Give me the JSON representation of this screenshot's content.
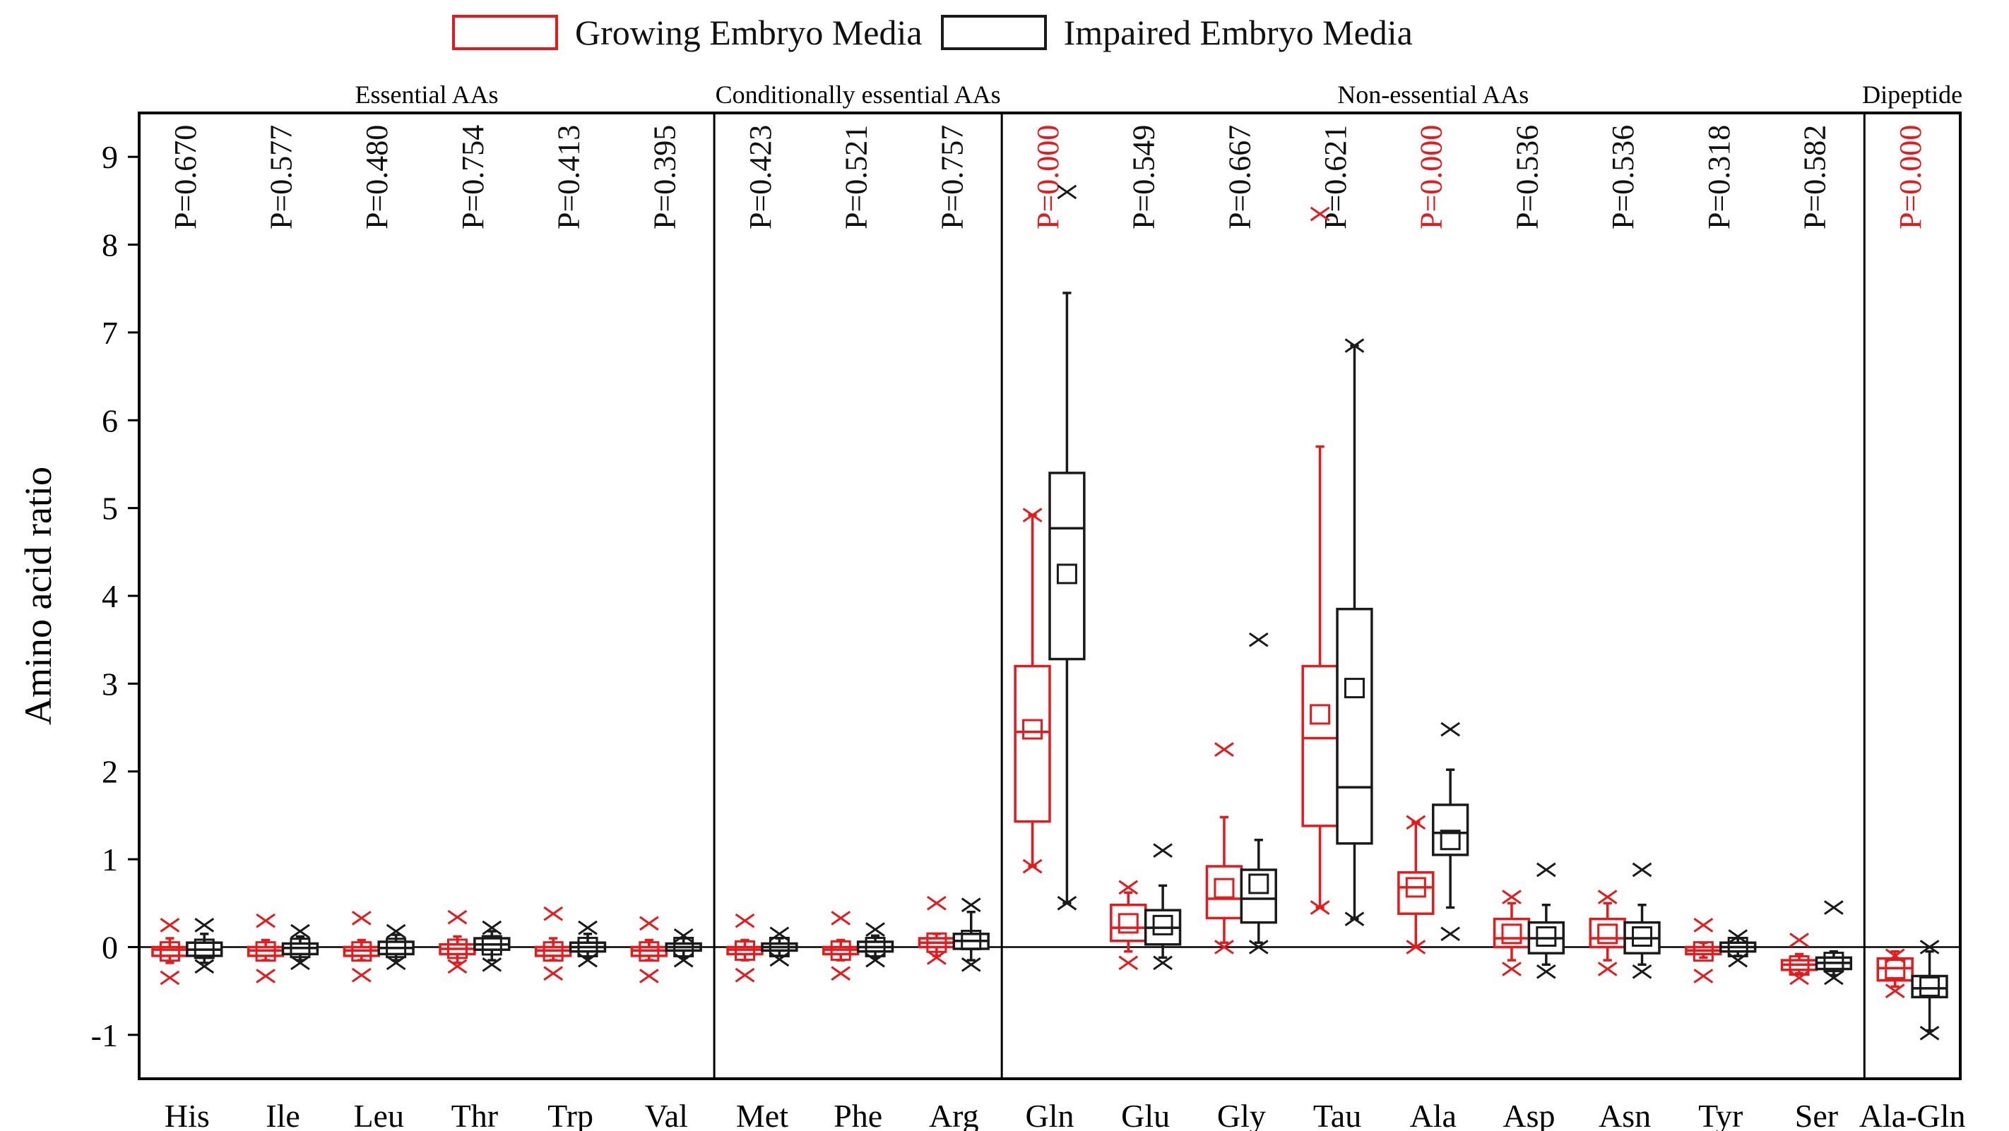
{
  "chart_data": {
    "type": "box",
    "ylabel": "Amino acid ratio",
    "xlabel": "",
    "ylim": [
      -1.5,
      9.5
    ],
    "yticks": [
      -1,
      0,
      1,
      2,
      3,
      4,
      5,
      6,
      7,
      8,
      9
    ],
    "grid": false,
    "legend": {
      "position": "top",
      "entries": [
        {
          "name": "Growing Embryo Media",
          "color": "#e8191b"
        },
        {
          "name": "Impaired Embryo Media",
          "color": "#1a1a1a"
        }
      ]
    },
    "groups": [
      {
        "label": "Essential AAs",
        "categories": [
          "His",
          "Ile",
          "Leu",
          "Thr",
          "Trp",
          "Val"
        ]
      },
      {
        "label": "Conditionally essential AAs",
        "categories": [
          "Met",
          "Phe",
          "Arg"
        ]
      },
      {
        "label": "Non-essential AAs",
        "categories": [
          "Gln",
          "Glu",
          "Gly",
          "Tau",
          "Ala",
          "Asp",
          "Asn",
          "Tyr",
          "Ser"
        ]
      },
      {
        "label": "Dipeptide",
        "categories": [
          "Ala-Gln"
        ]
      }
    ],
    "categories": [
      "His",
      "Ile",
      "Leu",
      "Thr",
      "Trp",
      "Val",
      "Met",
      "Phe",
      "Arg",
      "Gln",
      "Glu",
      "Gly",
      "Tau",
      "Ala",
      "Asp",
      "Asn",
      "Tyr",
      "Ser",
      "Ala-Gln"
    ],
    "p_values": [
      {
        "text": "P=0.670",
        "significant": false
      },
      {
        "text": "P=0.577",
        "significant": false
      },
      {
        "text": "P=0.480",
        "significant": false
      },
      {
        "text": "P=0.754",
        "significant": false
      },
      {
        "text": "P=0.413",
        "significant": false
      },
      {
        "text": "P=0.395",
        "significant": false
      },
      {
        "text": "P=0.423",
        "significant": false
      },
      {
        "text": "P=0.521",
        "significant": false
      },
      {
        "text": "P=0.757",
        "significant": false
      },
      {
        "text": "P=0.000",
        "significant": true
      },
      {
        "text": "P=0.549",
        "significant": false
      },
      {
        "text": "P=0.667",
        "significant": false
      },
      {
        "text": "P=0.621",
        "significant": false
      },
      {
        "text": "P=0.000",
        "significant": true
      },
      {
        "text": "P=0.536",
        "significant": false
      },
      {
        "text": "P=0.536",
        "significant": false
      },
      {
        "text": "P=0.318",
        "significant": false
      },
      {
        "text": "P=0.582",
        "significant": false
      },
      {
        "text": "P=0.000",
        "significant": true
      }
    ],
    "series": [
      {
        "name": "Growing Embryo Media",
        "color": "#e8191b",
        "boxes": [
          {
            "cat": "His",
            "q1": -0.1,
            "median": -0.03,
            "q3": 0.0,
            "mean": -0.05,
            "wlo": -0.18,
            "whi": 0.1,
            "xlo": -0.35,
            "xhi": 0.25
          },
          {
            "cat": "Ile",
            "q1": -0.1,
            "median": -0.04,
            "q3": 0.0,
            "mean": -0.05,
            "wlo": -0.15,
            "whi": 0.08,
            "xlo": -0.33,
            "xhi": 0.3
          },
          {
            "cat": "Leu",
            "q1": -0.1,
            "median": -0.04,
            "q3": 0.0,
            "mean": -0.05,
            "wlo": -0.15,
            "whi": 0.08,
            "xlo": -0.32,
            "xhi": 0.33
          },
          {
            "cat": "Thr",
            "q1": -0.08,
            "median": -0.02,
            "q3": 0.03,
            "mean": -0.02,
            "wlo": -0.18,
            "whi": 0.12,
            "xlo": -0.22,
            "xhi": 0.34
          },
          {
            "cat": "Trp",
            "q1": -0.1,
            "median": -0.04,
            "q3": 0.0,
            "mean": -0.05,
            "wlo": -0.15,
            "whi": 0.1,
            "xlo": -0.3,
            "xhi": 0.38
          },
          {
            "cat": "Val",
            "q1": -0.1,
            "median": -0.04,
            "q3": 0.0,
            "mean": -0.05,
            "wlo": -0.15,
            "whi": 0.08,
            "xlo": -0.33,
            "xhi": 0.27
          },
          {
            "cat": "Met",
            "q1": -0.08,
            "median": -0.03,
            "q3": 0.0,
            "mean": -0.04,
            "wlo": -0.15,
            "whi": 0.08,
            "xlo": -0.32,
            "xhi": 0.3
          },
          {
            "cat": "Phe",
            "q1": -0.08,
            "median": -0.03,
            "q3": 0.0,
            "mean": -0.04,
            "wlo": -0.15,
            "whi": 0.08,
            "xlo": -0.3,
            "xhi": 0.33
          },
          {
            "cat": "Arg",
            "q1": 0.0,
            "median": 0.05,
            "q3": 0.1,
            "mean": 0.05,
            "wlo": -0.1,
            "whi": 0.15,
            "xlo": -0.12,
            "xhi": 0.5
          },
          {
            "cat": "Gln",
            "q1": 1.43,
            "median": 2.45,
            "q3": 3.2,
            "mean": 2.48,
            "wlo": 0.92,
            "whi": 4.92,
            "xlo": 0.92,
            "xhi": 4.92
          },
          {
            "cat": "Glu",
            "q1": 0.07,
            "median": 0.22,
            "q3": 0.48,
            "mean": 0.27,
            "wlo": -0.05,
            "whi": 0.62,
            "xlo": -0.18,
            "xhi": 0.68
          },
          {
            "cat": "Gly",
            "q1": 0.33,
            "median": 0.55,
            "q3": 0.92,
            "mean": 0.67,
            "wlo": 0.05,
            "whi": 1.48,
            "xlo": 0.0,
            "xhi": 2.25
          },
          {
            "cat": "Tau",
            "q1": 1.38,
            "median": 2.38,
            "q3": 3.2,
            "mean": 2.65,
            "wlo": 0.45,
            "whi": 5.7,
            "xlo": 0.45,
            "xhi": 8.35
          },
          {
            "cat": "Ala",
            "q1": 0.38,
            "median": 0.68,
            "q3": 0.85,
            "mean": 0.68,
            "wlo": 0.0,
            "whi": 1.42,
            "xlo": 0.0,
            "xhi": 1.42
          },
          {
            "cat": "Asp",
            "q1": 0.0,
            "median": 0.1,
            "q3": 0.32,
            "mean": 0.15,
            "wlo": -0.15,
            "whi": 0.5,
            "xlo": -0.25,
            "xhi": 0.57
          },
          {
            "cat": "Asn",
            "q1": 0.0,
            "median": 0.1,
            "q3": 0.32,
            "mean": 0.15,
            "wlo": -0.15,
            "whi": 0.5,
            "xlo": -0.25,
            "xhi": 0.57
          },
          {
            "cat": "Tyr",
            "q1": -0.08,
            "median": -0.04,
            "q3": 0.0,
            "mean": -0.05,
            "wlo": -0.12,
            "whi": 0.05,
            "xlo": -0.33,
            "xhi": 0.25
          },
          {
            "cat": "Ser",
            "q1": -0.26,
            "median": -0.2,
            "q3": -0.15,
            "mean": -0.21,
            "wlo": -0.3,
            "whi": -0.08,
            "xlo": -0.35,
            "xhi": 0.08
          },
          {
            "cat": "Ala-Gln",
            "q1": -0.38,
            "median": -0.24,
            "q3": -0.13,
            "mean": -0.25,
            "wlo": -0.45,
            "whi": -0.05,
            "xlo": -0.5,
            "xhi": -0.1
          }
        ]
      },
      {
        "name": "Impaired Embryo Media",
        "color": "#1a1a1a",
        "boxes": [
          {
            "cat": "His",
            "q1": -0.1,
            "median": -0.03,
            "q3": 0.05,
            "mean": -0.02,
            "wlo": -0.18,
            "whi": 0.15,
            "xlo": -0.22,
            "xhi": 0.25
          },
          {
            "cat": "Ile",
            "q1": -0.08,
            "median": -0.01,
            "q3": 0.04,
            "mean": -0.01,
            "wlo": -0.15,
            "whi": 0.12,
            "xlo": -0.18,
            "xhi": 0.18
          },
          {
            "cat": "Leu",
            "q1": -0.08,
            "median": -0.01,
            "q3": 0.06,
            "mean": -0.01,
            "wlo": -0.15,
            "whi": 0.14,
            "xlo": -0.18,
            "xhi": 0.18
          },
          {
            "cat": "Thr",
            "q1": -0.03,
            "median": 0.03,
            "q3": 0.1,
            "mean": 0.02,
            "wlo": -0.15,
            "whi": 0.18,
            "xlo": -0.2,
            "xhi": 0.22
          },
          {
            "cat": "Trp",
            "q1": -0.05,
            "median": 0.0,
            "q3": 0.05,
            "mean": 0.0,
            "wlo": -0.12,
            "whi": 0.15,
            "xlo": -0.15,
            "xhi": 0.22
          },
          {
            "cat": "Val",
            "q1": -0.04,
            "median": 0.0,
            "q3": 0.04,
            "mean": 0.0,
            "wlo": -0.12,
            "whi": 0.1,
            "xlo": -0.15,
            "xhi": 0.13
          },
          {
            "cat": "Met",
            "q1": -0.04,
            "median": 0.0,
            "q3": 0.04,
            "mean": 0.0,
            "wlo": -0.1,
            "whi": 0.1,
            "xlo": -0.14,
            "xhi": 0.15
          },
          {
            "cat": "Phe",
            "q1": -0.05,
            "median": 0.0,
            "q3": 0.06,
            "mean": 0.0,
            "wlo": -0.12,
            "whi": 0.13,
            "xlo": -0.15,
            "xhi": 0.2
          },
          {
            "cat": "Arg",
            "q1": -0.02,
            "median": 0.07,
            "q3": 0.15,
            "mean": 0.08,
            "wlo": -0.15,
            "whi": 0.4,
            "xlo": -0.2,
            "xhi": 0.48
          },
          {
            "cat": "Gln",
            "q1": 3.28,
            "median": 4.77,
            "q3": 5.4,
            "mean": 4.25,
            "wlo": 0.5,
            "whi": 7.45,
            "xlo": 0.5,
            "xhi": 8.6
          },
          {
            "cat": "Glu",
            "q1": 0.03,
            "median": 0.22,
            "q3": 0.42,
            "mean": 0.25,
            "wlo": -0.12,
            "whi": 0.7,
            "xlo": -0.18,
            "xhi": 1.1
          },
          {
            "cat": "Gly",
            "q1": 0.28,
            "median": 0.55,
            "q3": 0.88,
            "mean": 0.72,
            "wlo": 0.05,
            "whi": 1.22,
            "xlo": 0.0,
            "xhi": 3.5
          },
          {
            "cat": "Tau",
            "q1": 1.18,
            "median": 1.82,
            "q3": 3.85,
            "mean": 2.95,
            "wlo": 0.32,
            "whi": 6.85,
            "xlo": 0.32,
            "xhi": 6.85
          },
          {
            "cat": "Ala",
            "q1": 1.05,
            "median": 1.3,
            "q3": 1.62,
            "mean": 1.22,
            "wlo": 0.45,
            "whi": 2.02,
            "xlo": 0.15,
            "xhi": 2.48
          },
          {
            "cat": "Asp",
            "q1": -0.07,
            "median": 0.1,
            "q3": 0.28,
            "mean": 0.12,
            "wlo": -0.2,
            "whi": 0.48,
            "xlo": -0.28,
            "xhi": 0.88
          },
          {
            "cat": "Asn",
            "q1": -0.07,
            "median": 0.1,
            "q3": 0.28,
            "mean": 0.12,
            "wlo": -0.2,
            "whi": 0.48,
            "xlo": -0.28,
            "xhi": 0.88
          },
          {
            "cat": "Tyr",
            "q1": -0.05,
            "median": 0.0,
            "q3": 0.05,
            "mean": 0.0,
            "wlo": -0.1,
            "whi": 0.1,
            "xlo": -0.15,
            "xhi": 0.12
          },
          {
            "cat": "Ser",
            "q1": -0.25,
            "median": -0.18,
            "q3": -0.12,
            "mean": -0.17,
            "wlo": -0.32,
            "whi": -0.05,
            "xlo": -0.35,
            "xhi": 0.45
          },
          {
            "cat": "Ala-Gln",
            "q1": -0.57,
            "median": -0.47,
            "q3": -0.33,
            "mean": -0.45,
            "wlo": -0.95,
            "whi": -0.05,
            "xlo": -0.98,
            "xhi": 0.0
          }
        ]
      }
    ]
  }
}
